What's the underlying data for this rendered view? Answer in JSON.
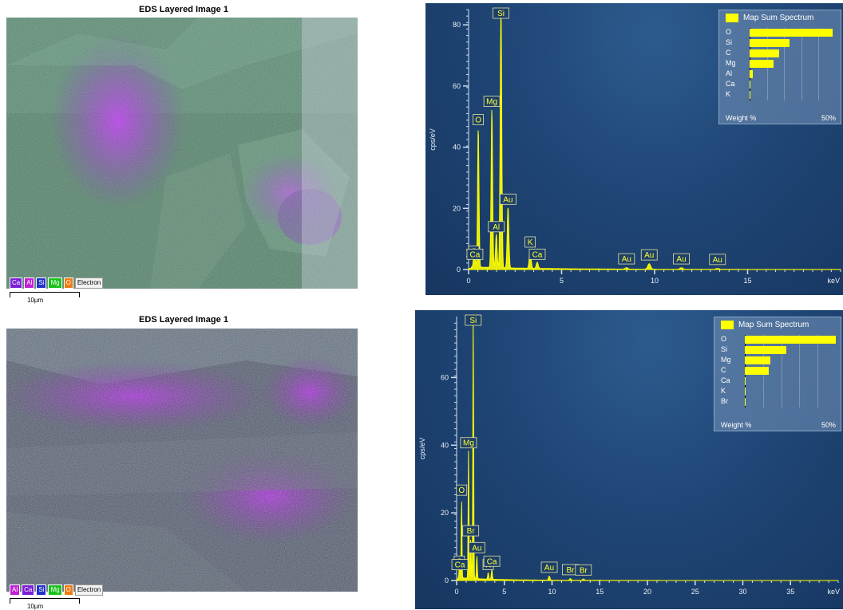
{
  "panels": [
    {
      "title": "EDS Layered Image 1",
      "legend": [
        "Ca",
        "Al",
        "Si",
        "Mg",
        "O",
        "Electron"
      ],
      "scale": "10µm"
    },
    {
      "title": "EDS Layered Image 1",
      "legend": [
        "Al",
        "Ca",
        "Si",
        "Mg",
        "O",
        "Electron"
      ],
      "scale": "10µm"
    }
  ],
  "legend_colors": {
    "Ca": "#7a1fd6",
    "Al": "#c21fd6",
    "Si": "#2233cc",
    "Mg": "#19c219",
    "O": "#f07a10",
    "Electron": "#f2f2f2"
  },
  "chart_data": [
    {
      "type": "line",
      "ylabel": "cps/eV",
      "xlabel": "keV",
      "xlim": [
        0,
        20
      ],
      "ylim": [
        0,
        85
      ],
      "yticks": [
        0,
        20,
        40,
        60,
        80
      ],
      "xticks": [
        0,
        5,
        10,
        15
      ],
      "peaks": [
        {
          "x": 0.28,
          "y": 3,
          "label": "C"
        },
        {
          "x": 0.34,
          "y": 2,
          "label": "Ca"
        },
        {
          "x": 0.52,
          "y": 46,
          "label": "O"
        },
        {
          "x": 1.25,
          "y": 52,
          "label": "Mg"
        },
        {
          "x": 1.49,
          "y": 11,
          "label": "Al"
        },
        {
          "x": 1.74,
          "y": 86,
          "label": "Si"
        },
        {
          "x": 2.12,
          "y": 20,
          "label": "Au"
        },
        {
          "x": 3.31,
          "y": 6,
          "label": "K"
        },
        {
          "x": 3.69,
          "y": 2,
          "label": "Ca"
        },
        {
          "x": 8.49,
          "y": 0.5,
          "label": "Au"
        },
        {
          "x": 9.71,
          "y": 1.8,
          "label": "Au"
        },
        {
          "x": 11.44,
          "y": 0.5,
          "label": "Au"
        },
        {
          "x": 13.38,
          "y": 0.3,
          "label": "Au"
        }
      ],
      "inset": {
        "title": "Map Sum Spectrum",
        "footer_left": "Weight %",
        "footer_right": "50%",
        "max": 50,
        "rows": [
          {
            "el": "O",
            "v": 48
          },
          {
            "el": "Si",
            "v": 23
          },
          {
            "el": "C",
            "v": 17
          },
          {
            "el": "Mg",
            "v": 14
          },
          {
            "el": "Al",
            "v": 2
          },
          {
            "el": "Ca",
            "v": 0.6
          },
          {
            "el": "K",
            "v": 0.4
          }
        ]
      }
    },
    {
      "type": "line",
      "ylabel": "cps/eV",
      "xlabel": "keV",
      "xlim": [
        0,
        40
      ],
      "ylim": [
        0,
        78
      ],
      "yticks": [
        0,
        20,
        40,
        60
      ],
      "xticks": [
        0,
        5,
        10,
        15,
        20,
        25,
        30,
        35
      ],
      "peaks": [
        {
          "x": 0.28,
          "y": 3,
          "label": "C"
        },
        {
          "x": 0.34,
          "y": 2,
          "label": "Ca"
        },
        {
          "x": 0.52,
          "y": 24,
          "label": "O"
        },
        {
          "x": 1.25,
          "y": 38,
          "label": "Mg"
        },
        {
          "x": 1.48,
          "y": 12,
          "label": "Br"
        },
        {
          "x": 1.74,
          "y": 78,
          "label": "Si"
        },
        {
          "x": 2.12,
          "y": 7,
          "label": "Au"
        },
        {
          "x": 3.31,
          "y": 2,
          "label": "K"
        },
        {
          "x": 3.69,
          "y": 3,
          "label": "Ca"
        },
        {
          "x": 9.71,
          "y": 1.2,
          "label": "Au"
        },
        {
          "x": 11.92,
          "y": 0.5,
          "label": "Br"
        },
        {
          "x": 13.29,
          "y": 0.4,
          "label": "Br"
        }
      ],
      "inset": {
        "title": "Map Sum Spectrum",
        "footer_left": "Weight %",
        "footer_right": "50%",
        "max": 50,
        "rows": [
          {
            "el": "O",
            "v": 50
          },
          {
            "el": "Si",
            "v": 23
          },
          {
            "el": "Mg",
            "v": 14
          },
          {
            "el": "C",
            "v": 13
          },
          {
            "el": "Ca",
            "v": 0.6
          },
          {
            "el": "K",
            "v": 0.4
          },
          {
            "el": "Br",
            "v": 0.3
          }
        ]
      }
    }
  ]
}
